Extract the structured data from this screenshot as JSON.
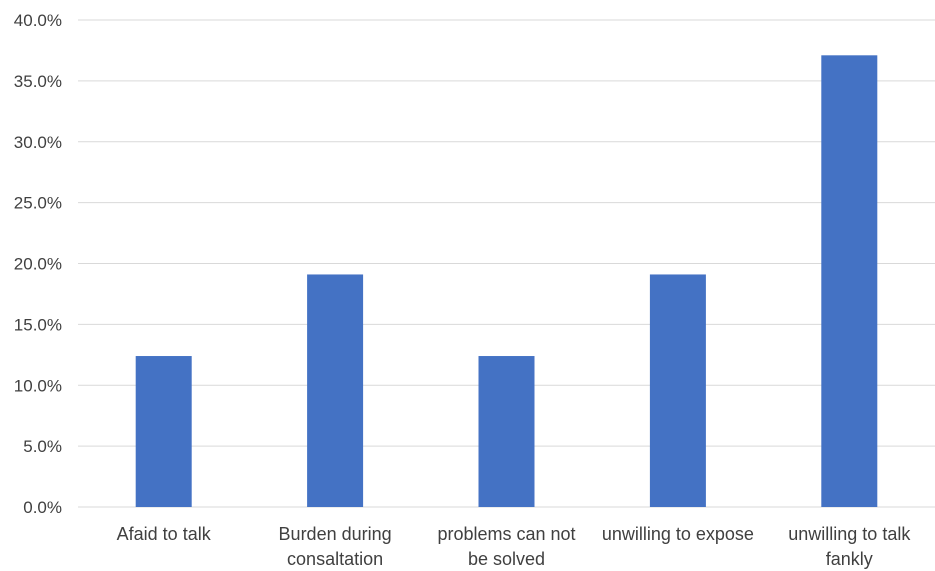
{
  "chart_data": {
    "type": "bar",
    "title": "",
    "xlabel": "",
    "ylabel": "",
    "categories": [
      [
        "Afaid to talk"
      ],
      [
        "Burden during",
        "consaltation"
      ],
      [
        "problems can not",
        "be solved"
      ],
      [
        "unwilling to expose"
      ],
      [
        "unwilling to talk",
        "fankly"
      ]
    ],
    "values": [
      12.4,
      19.1,
      12.4,
      19.1,
      37.1
    ],
    "ylim": [
      0,
      40
    ],
    "yticks": [
      0,
      5,
      10,
      15,
      20,
      25,
      30,
      35,
      40
    ],
    "ytick_labels": [
      "0.0%",
      "5.0%",
      "10.0%",
      "15.0%",
      "20.0%",
      "25.0%",
      "30.0%",
      "35.0%",
      "40.0%"
    ],
    "grid": true,
    "legend": "none",
    "bar_color": "#4472c4"
  }
}
